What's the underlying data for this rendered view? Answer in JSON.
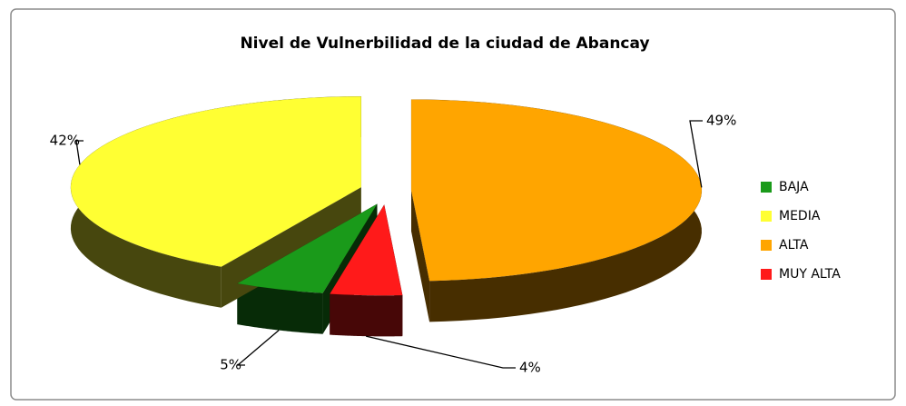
{
  "chart_data": {
    "type": "pie",
    "title": "Nivel de Vulnerbilidad de la ciudad de Abancay",
    "categories": [
      "BAJA",
      "MEDIA",
      "ALTA",
      "MUY ALTA"
    ],
    "values": [
      5,
      42,
      49,
      4
    ],
    "value_labels": [
      "5%",
      "42%",
      "49%",
      "4%"
    ],
    "colors": [
      "#1a9a1a",
      "#ffff33",
      "#ffa500",
      "#ff1a1a"
    ],
    "legend": "right"
  }
}
